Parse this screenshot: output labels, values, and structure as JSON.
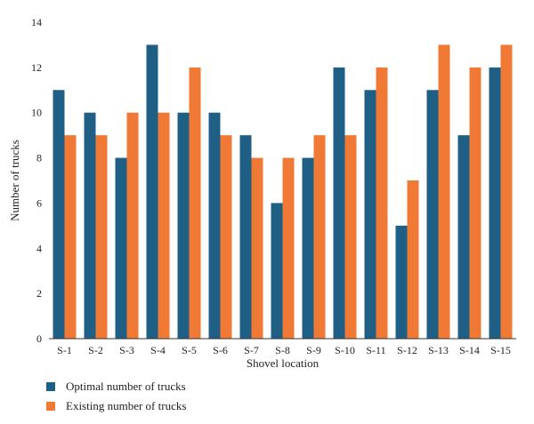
{
  "chart_data": {
    "type": "bar",
    "categories": [
      "S-1",
      "S-2",
      "S-3",
      "S-4",
      "S-5",
      "S-6",
      "S-7",
      "S-8",
      "S-9",
      "S-10",
      "S-11",
      "S-12",
      "S-13",
      "S-14",
      "S-15"
    ],
    "series": [
      {
        "name": "Optimal number of trucks",
        "color": "#1f5f86",
        "values": [
          11,
          10,
          8,
          13,
          10,
          10,
          9,
          6,
          8,
          12,
          11,
          5,
          11,
          9,
          12
        ]
      },
      {
        "name": "Existing number of trucks",
        "color": "#f07a35",
        "values": [
          9,
          9,
          10,
          10,
          12,
          9,
          8,
          8,
          9,
          9,
          12,
          7,
          13,
          12,
          13
        ]
      }
    ],
    "title": "",
    "xlabel": "Shovel location",
    "ylabel": "Number of trucks",
    "ylim": [
      0,
      14
    ],
    "yticks": [
      0,
      2,
      4,
      6,
      8,
      10,
      12,
      14
    ],
    "grid": false,
    "legend_position": "bottom-left"
  }
}
